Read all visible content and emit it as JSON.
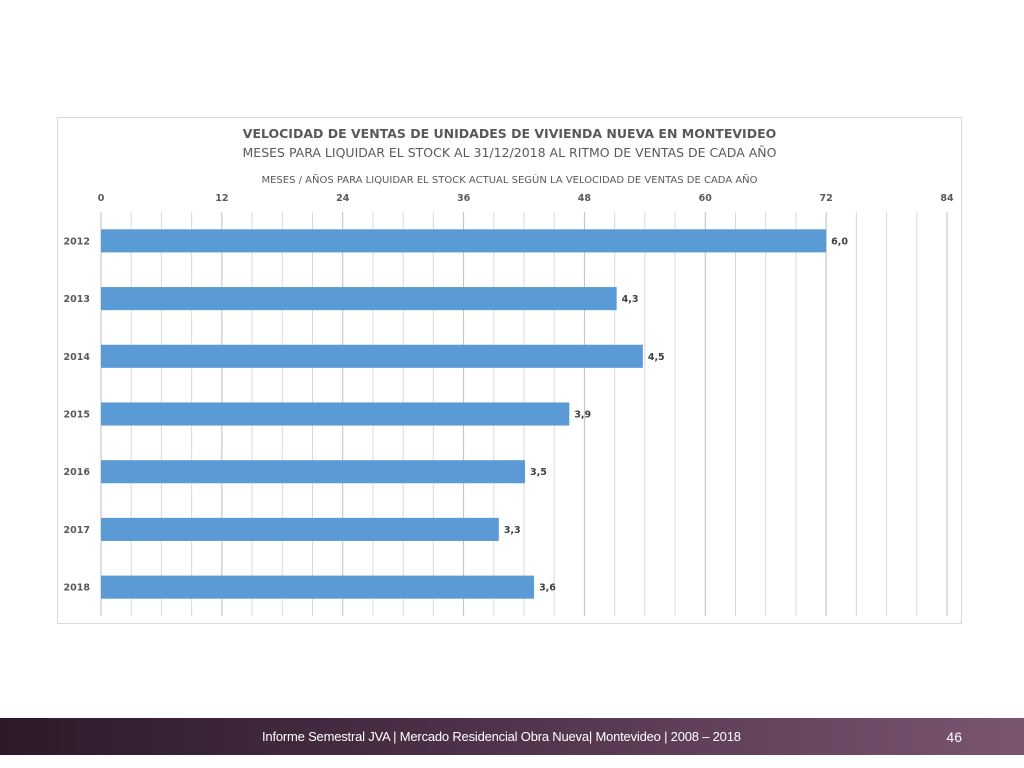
{
  "chart_data": {
    "type": "bar",
    "orientation": "horizontal",
    "title": "VELOCIDAD DE VENTAS DE UNIDADES DE VIVIENDA NUEVA EN MONTEVIDEO",
    "subtitle": "MESES PARA LIQUIDAR EL STOCK AL 31/12/2018 AL RITMO DE VENTAS DE CADA AÑO",
    "xlabel": "MESES / AÑOS PARA LIQUIDAR EL STOCK ACTUAL SEGÚN LA VELOCIDAD DE VENTAS DE CADA AÑO",
    "ylabel": "",
    "xlim": [
      0,
      84
    ],
    "x_ticks": [
      0,
      12,
      24,
      36,
      48,
      60,
      72,
      84
    ],
    "x_axis_position": "top",
    "grid": true,
    "categories": [
      "2012",
      "2013",
      "2014",
      "2015",
      "2016",
      "2017",
      "2018"
    ],
    "values": [
      72.0,
      51.2,
      53.8,
      46.5,
      42.1,
      39.5,
      43.0
    ],
    "data_labels": [
      "6,0",
      "4,3",
      "4,5",
      "3,9",
      "3,5",
      "3,3",
      "3,6"
    ],
    "bar_color": "#5b9bd5"
  },
  "footer": {
    "text": "Informe Semestral JVA | Mercado Residencial Obra Nueva| Montevideo | 2008 – 2018",
    "page_number": "46"
  }
}
